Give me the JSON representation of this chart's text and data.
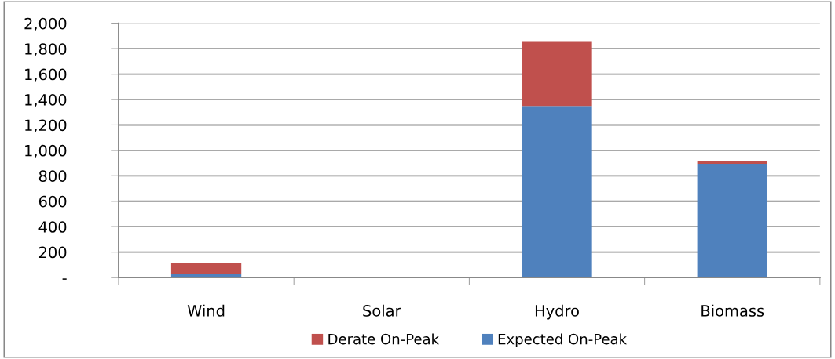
{
  "chart_data": {
    "type": "bar",
    "stacked": true,
    "categories": [
      "Wind",
      "Solar",
      "Hydro",
      "Biomass"
    ],
    "series": [
      {
        "name": "Expected On-Peak",
        "color": "#4f81bd",
        "values": [
          25,
          0,
          1350,
          895
        ]
      },
      {
        "name": "Derate On-Peak",
        "color": "#c0504d",
        "values": [
          90,
          0,
          510,
          20
        ]
      }
    ],
    "ylim": [
      0,
      2000
    ],
    "yticks": [
      {
        "value": 0,
        "label": "-"
      },
      {
        "value": 200,
        "label": "200"
      },
      {
        "value": 400,
        "label": "400"
      },
      {
        "value": 600,
        "label": "600"
      },
      {
        "value": 800,
        "label": "800"
      },
      {
        "value": 1000,
        "label": "1,000"
      },
      {
        "value": 1200,
        "label": "1,200"
      },
      {
        "value": 1400,
        "label": "1,400"
      },
      {
        "value": 1600,
        "label": "1,600"
      },
      {
        "value": 1800,
        "label": "1,800"
      },
      {
        "value": 2000,
        "label": "2,000"
      }
    ],
    "grid": "y",
    "legend": "bottom"
  }
}
